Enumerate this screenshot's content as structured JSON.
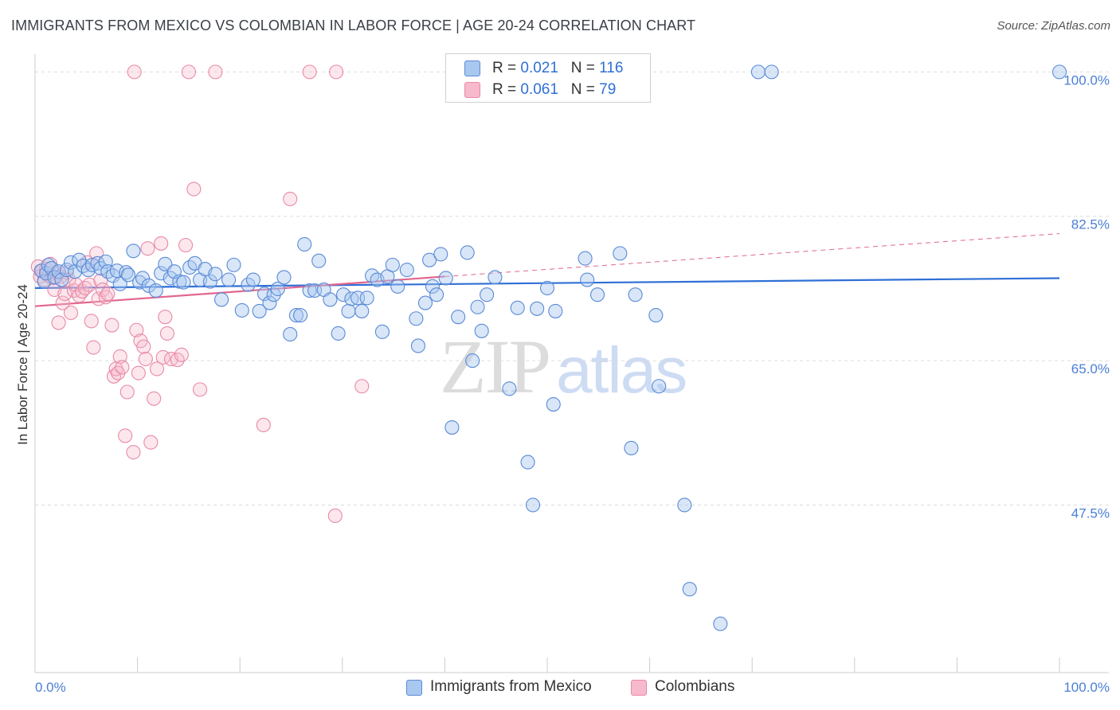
{
  "title": "IMMIGRANTS FROM MEXICO VS COLOMBIAN IN LABOR FORCE | AGE 20-24 CORRELATION CHART",
  "source": "Source: ZipAtlas.com",
  "watermark": {
    "zip": "ZIP",
    "atlas": "atlas"
  },
  "legend": {
    "rows": [
      {
        "r_label": "R = ",
        "r_value": "0.021",
        "n_label": "N = ",
        "n_value": "116"
      },
      {
        "r_label": "R = ",
        "r_value": "0.061",
        "n_label": "N = ",
        "n_value": "79"
      }
    ]
  },
  "bottom_legend": {
    "items": [
      {
        "label": "Immigrants from Mexico"
      },
      {
        "label": "Colombians"
      }
    ]
  },
  "colors": {
    "blue_fill": "#a9c8ef",
    "blue_stroke": "#5a8ad6",
    "blue_line": "#2f6fd6",
    "pink_fill": "#f7b9cc",
    "pink_stroke": "#e88aa8",
    "pink_line": "#e2668e",
    "grid": "#dddddd",
    "axis": "#cccccc",
    "tick_text": "#4a7fd4"
  },
  "chart_data": {
    "type": "scatter",
    "title": "IMMIGRANTS FROM MEXICO VS COLOMBIAN IN LABOR FORCE | AGE 20-24 CORRELATION CHART",
    "xlabel": "",
    "ylabel": "In Labor Force | Age 20-24",
    "xlim": [
      0,
      100
    ],
    "ylim": [
      29.6,
      101
    ],
    "x_tick_labels": [
      {
        "v": 0,
        "label": "0.0%"
      },
      {
        "v": 100,
        "label": "100.0%"
      }
    ],
    "y_ticks": [
      {
        "v": 100,
        "label": "100.0%"
      },
      {
        "v": 82.5,
        "label": "82.5%"
      },
      {
        "v": 65,
        "label": "65.0%"
      },
      {
        "v": 47.5,
        "label": "47.5%"
      }
    ],
    "series": [
      {
        "name": "Immigrants from Mexico",
        "r": 0.021,
        "n": 116,
        "trend": {
          "x": [
            0,
            100
          ],
          "y": [
            73.8,
            75.0
          ]
        },
        "points": [
          [
            0.6,
            75.9
          ],
          [
            0.9,
            74.6
          ],
          [
            1.1,
            75.6
          ],
          [
            1.3,
            76.6
          ],
          [
            1.6,
            76.2
          ],
          [
            1.9,
            75.1
          ],
          [
            2.3,
            75.8
          ],
          [
            2.6,
            74.8
          ],
          [
            3.1,
            76.0
          ],
          [
            3.5,
            76.9
          ],
          [
            3.9,
            75.8
          ],
          [
            4.3,
            77.2
          ],
          [
            4.7,
            76.5
          ],
          [
            5.2,
            76.0
          ],
          [
            5.6,
            76.6
          ],
          [
            6.1,
            76.8
          ],
          [
            6.4,
            76.2
          ],
          [
            6.9,
            77.0
          ],
          [
            7.1,
            75.8
          ],
          [
            7.6,
            75.3
          ],
          [
            8.0,
            75.9
          ],
          [
            8.3,
            74.3
          ],
          [
            8.9,
            75.7
          ],
          [
            9.1,
            75.4
          ],
          [
            9.6,
            78.3
          ],
          [
            10.2,
            74.5
          ],
          [
            10.5,
            75.0
          ],
          [
            11.1,
            74.1
          ],
          [
            11.8,
            73.5
          ],
          [
            12.3,
            75.6
          ],
          [
            12.7,
            76.7
          ],
          [
            13.2,
            75.0
          ],
          [
            13.6,
            75.8
          ],
          [
            14.1,
            74.6
          ],
          [
            14.5,
            74.5
          ],
          [
            15.1,
            76.3
          ],
          [
            15.6,
            76.8
          ],
          [
            16.1,
            74.8
          ],
          [
            16.6,
            76.1
          ],
          [
            17.1,
            74.6
          ],
          [
            17.6,
            75.5
          ],
          [
            18.2,
            72.4
          ],
          [
            18.9,
            74.8
          ],
          [
            19.4,
            76.6
          ],
          [
            20.2,
            71.1
          ],
          [
            20.8,
            74.2
          ],
          [
            21.3,
            74.8
          ],
          [
            21.9,
            71.0
          ],
          [
            22.4,
            73.1
          ],
          [
            22.9,
            72.0
          ],
          [
            23.3,
            73.0
          ],
          [
            23.7,
            73.7
          ],
          [
            24.3,
            75.1
          ],
          [
            24.9,
            68.2
          ],
          [
            25.5,
            70.5
          ],
          [
            25.9,
            70.5
          ],
          [
            26.3,
            79.1
          ],
          [
            26.8,
            73.5
          ],
          [
            27.3,
            73.5
          ],
          [
            27.7,
            77.1
          ],
          [
            28.2,
            73.6
          ],
          [
            28.8,
            72.4
          ],
          [
            29.6,
            68.3
          ],
          [
            30.1,
            73.0
          ],
          [
            30.6,
            71.0
          ],
          [
            30.9,
            72.5
          ],
          [
            31.5,
            72.6
          ],
          [
            31.9,
            71.0
          ],
          [
            32.4,
            72.6
          ],
          [
            32.9,
            75.3
          ],
          [
            33.4,
            74.8
          ],
          [
            33.9,
            68.5
          ],
          [
            34.4,
            75.2
          ],
          [
            34.9,
            76.6
          ],
          [
            35.4,
            74.0
          ],
          [
            36.3,
            76.0
          ],
          [
            37.2,
            70.1
          ],
          [
            37.4,
            66.8
          ],
          [
            38.1,
            72.0
          ],
          [
            38.5,
            77.2
          ],
          [
            38.8,
            74.0
          ],
          [
            39.2,
            73.0
          ],
          [
            39.6,
            77.9
          ],
          [
            40.1,
            75.0
          ],
          [
            40.7,
            56.9
          ],
          [
            41.3,
            70.3
          ],
          [
            42.2,
            78.1
          ],
          [
            42.7,
            65.0
          ],
          [
            43.2,
            71.5
          ],
          [
            43.6,
            68.6
          ],
          [
            44.1,
            73.0
          ],
          [
            44.9,
            75.1
          ],
          [
            46.3,
            61.6
          ],
          [
            47.1,
            71.4
          ],
          [
            48.1,
            52.7
          ],
          [
            48.6,
            47.5
          ],
          [
            49.0,
            71.3
          ],
          [
            50.0,
            73.8
          ],
          [
            50.8,
            71.0
          ],
          [
            50.6,
            59.7
          ],
          [
            53.7,
            77.4
          ],
          [
            53.9,
            74.8
          ],
          [
            54.9,
            73.0
          ],
          [
            57.1,
            78.0
          ],
          [
            58.2,
            54.4
          ],
          [
            58.6,
            73.0
          ],
          [
            60.6,
            70.5
          ],
          [
            60.9,
            61.9
          ],
          [
            63.4,
            47.5
          ],
          [
            63.9,
            37.3
          ],
          [
            66.9,
            33.1
          ],
          [
            70.6,
            100.0
          ],
          [
            71.9,
            100.0
          ],
          [
            100.0,
            100.0
          ]
        ]
      },
      {
        "name": "Colombians",
        "r": 0.061,
        "n": 79,
        "trend": {
          "x": [
            0,
            40
          ],
          "y": [
            71.6,
            75.2
          ]
        },
        "trend_dashed": {
          "x": [
            40,
            100
          ],
          "y": [
            75.2,
            80.4
          ]
        },
        "points": [
          [
            0.3,
            76.4
          ],
          [
            0.5,
            75.2
          ],
          [
            0.7,
            75.9
          ],
          [
            0.9,
            74.8
          ],
          [
            1.1,
            76.1
          ],
          [
            1.3,
            75.3
          ],
          [
            1.5,
            76.7
          ],
          [
            1.7,
            75.0
          ],
          [
            1.9,
            73.6
          ],
          [
            2.1,
            75.6
          ],
          [
            2.3,
            69.6
          ],
          [
            2.5,
            75.2
          ],
          [
            2.7,
            72.0
          ],
          [
            2.9,
            73.1
          ],
          [
            3.1,
            75.7
          ],
          [
            3.3,
            74.8
          ],
          [
            3.5,
            70.8
          ],
          [
            3.8,
            73.5
          ],
          [
            4.0,
            74.2
          ],
          [
            4.3,
            72.9
          ],
          [
            4.6,
            73.4
          ],
          [
            4.9,
            73.8
          ],
          [
            5.1,
            76.9
          ],
          [
            5.3,
            74.2
          ],
          [
            5.5,
            69.8
          ],
          [
            5.7,
            66.6
          ],
          [
            6.0,
            78.0
          ],
          [
            6.2,
            72.5
          ],
          [
            6.4,
            74.7
          ],
          [
            6.6,
            73.6
          ],
          [
            6.9,
            72.7
          ],
          [
            7.1,
            73.1
          ],
          [
            7.5,
            69.3
          ],
          [
            7.7,
            63.1
          ],
          [
            7.9,
            64.0
          ],
          [
            8.1,
            63.5
          ],
          [
            8.3,
            65.5
          ],
          [
            8.5,
            64.2
          ],
          [
            8.8,
            55.9
          ],
          [
            9.0,
            61.2
          ],
          [
            9.6,
            53.9
          ],
          [
            9.9,
            68.7
          ],
          [
            10.1,
            63.5
          ],
          [
            10.3,
            67.4
          ],
          [
            10.6,
            66.7
          ],
          [
            10.8,
            65.2
          ],
          [
            11.0,
            78.6
          ],
          [
            11.3,
            55.1
          ],
          [
            11.6,
            60.4
          ],
          [
            11.9,
            64.0
          ],
          [
            12.3,
            79.2
          ],
          [
            12.5,
            65.4
          ],
          [
            12.7,
            70.3
          ],
          [
            12.9,
            68.3
          ],
          [
            13.3,
            65.2
          ],
          [
            13.9,
            65.1
          ],
          [
            14.3,
            65.7
          ],
          [
            14.7,
            79.0
          ],
          [
            15.5,
            85.8
          ],
          [
            16.1,
            61.5
          ],
          [
            22.3,
            57.2
          ],
          [
            24.9,
            84.6
          ],
          [
            29.3,
            46.2
          ],
          [
            31.9,
            61.9
          ],
          [
            9.7,
            100.0
          ],
          [
            15.0,
            100.0
          ],
          [
            17.6,
            100.0
          ],
          [
            26.8,
            100.0
          ],
          [
            29.4,
            100.0
          ]
        ]
      }
    ]
  }
}
